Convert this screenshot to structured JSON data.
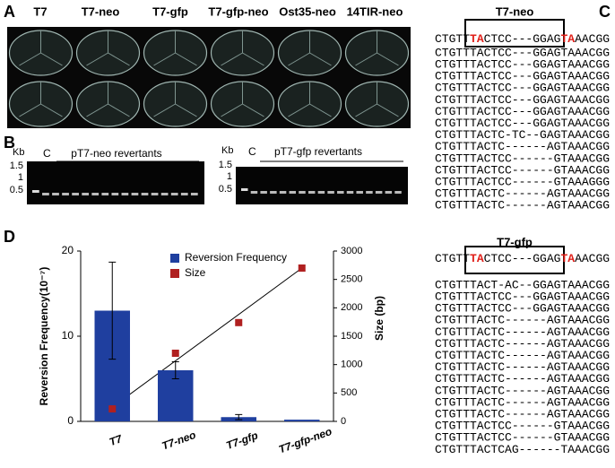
{
  "panel_labels": [
    "A",
    "B",
    "C",
    "D"
  ],
  "panel_a": {
    "columns": [
      "T7",
      "T7-neo",
      "T7-gfp",
      "T7-gfp-neo",
      "Ost35-neo",
      "14TIR-neo"
    ]
  },
  "panel_b": {
    "gels": [
      {
        "unit": "Kb",
        "markers": [
          "1.5",
          "1",
          "0.5"
        ],
        "control": "C",
        "caption": "pT7-neo revertants"
      },
      {
        "unit": "Kb",
        "markers": [
          "1.5",
          "1",
          "0.5"
        ],
        "control": "C",
        "caption": "pT7-gfp revertants"
      }
    ]
  },
  "panel_c": {
    "groups": [
      {
        "title": "T7-neo",
        "reference": [
          "CTGTT",
          "TA",
          "CTCC---GGAG",
          "TA",
          "AACGG"
        ],
        "sequences": [
          "CTGTTTACTCC---GGAGTAAACGG",
          "CTGTTTACTCC---GGAGTAAACGG",
          "CTGTTTACTCC---GGAGTAAACGG",
          "CTGTTTACTCC---GGAGTAAACGG",
          "CTGTTTACTCC---GGAGTAAACGG",
          "CTGTTTACTCC---GGAGTAAACGG",
          "CTGTTTACTCC---GGAGTAAACGG",
          "CTGTTTACTC-TC--GAGTAAACGG",
          "CTGTTTACTC------AGTAAACGG",
          "CTGTTTACTCC------GTAAACGG",
          "CTGTTTACTCC------GTAAACGG",
          "CTGTTTACTCC------GTAAAGGG",
          "CTGTTTACTC------AGTAAACGG",
          "CTGTTTACTC------AGTAAACGG"
        ]
      },
      {
        "title": "T7-gfp",
        "reference": [
          "CTGTT",
          "TA",
          "CTCC---GGAG",
          "TA",
          "AACGG"
        ],
        "sequences": [
          "CTGTTTACT-AC--GGAGTAAACGG",
          "CTGTTTACTCC---GGAGTAAACGG",
          "CTGTTTACTCC---GGAGTAAACGG",
          "CTGTTTACTC------AGTAAACGG",
          "CTGTTTACTC------AGTAAACGG",
          "CTGTTTACTC------AGTAAACGG",
          "CTGTTTACTC------AGTAAACGG",
          "CTGTTTACTC------AGTAAACGG",
          "CTGTTTACTC------AGTAAACGG",
          "CTGTTTACTC------AGTAAACGG",
          "CTGTTTACTC------AGTAAACGG",
          "CTGTTTACTC------AGTAAACGG",
          "CTGTTTACTCC------GTAAACGG",
          "CTGTTTACTCC------GTAAACGG",
          "CTGTTTACTCAG------TAAACGG"
        ]
      }
    ]
  },
  "chart_data": {
    "type": "bar",
    "categories": [
      "T7",
      "T7-neo",
      "T7-gfp",
      "T7-gfp-neo"
    ],
    "y_label": "Reversion Frequency(10⁻⁷)",
    "y2_label": "Size (bp)",
    "ylim": [
      0,
      20
    ],
    "yticks": [
      0,
      10,
      20
    ],
    "y2lim": [
      0,
      3000
    ],
    "y2ticks": [
      0,
      500,
      1000,
      1500,
      2000,
      2500,
      3000
    ],
    "series": [
      {
        "name": "Reversion Frequency",
        "color": "#1f3f9f",
        "values": [
          13,
          6,
          0.5,
          0.2
        ],
        "errors": [
          5.7,
          1.0,
          0.3,
          null
        ]
      },
      {
        "name": "Size",
        "color": "#b02020",
        "axis": "y2",
        "values": [
          220,
          1200,
          1740,
          2700
        ]
      }
    ],
    "trendline": [
      250,
      2700
    ]
  }
}
